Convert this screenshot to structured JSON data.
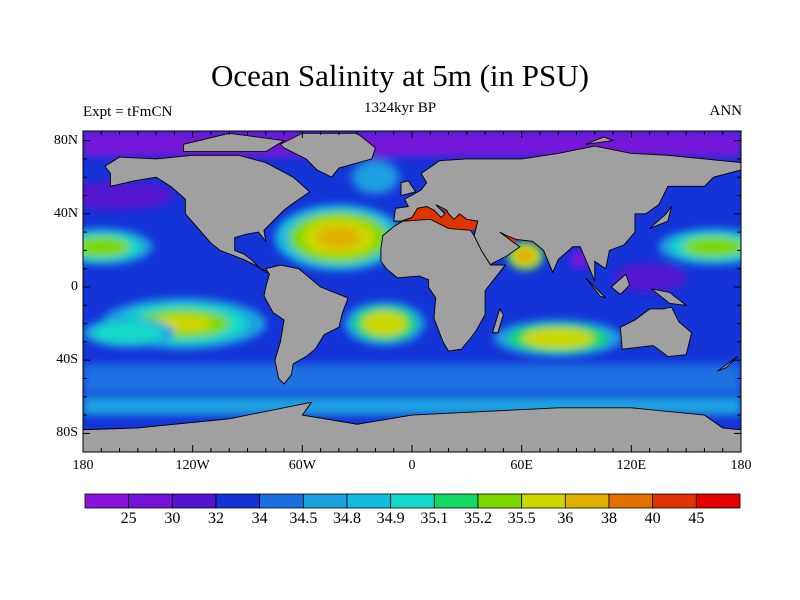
{
  "title": "Ocean Salinity at 5m (in PSU)",
  "subtitle_left": "Expt = tFmCN",
  "subtitle_center": "1324kyr BP",
  "subtitle_right": "ANN",
  "y_ticks": [
    {
      "label": "80N",
      "lat": 80
    },
    {
      "label": "40N",
      "lat": 40
    },
    {
      "label": "0",
      "lat": 0
    },
    {
      "label": "40S",
      "lat": -40
    },
    {
      "label": "80S",
      "lat": -80
    }
  ],
  "x_ticks": [
    {
      "label": "180",
      "lon": -180
    },
    {
      "label": "120W",
      "lon": -120
    },
    {
      "label": "60W",
      "lon": -60
    },
    {
      "label": "0",
      "lon": 0
    },
    {
      "label": "60E",
      "lon": 60
    },
    {
      "label": "120E",
      "lon": 120
    },
    {
      "label": "180",
      "lon": 180
    }
  ],
  "colorbar": {
    "labels": [
      "25",
      "30",
      "32",
      "34",
      "34.5",
      "34.8",
      "34.9",
      "35.1",
      "35.2",
      "35.5",
      "36",
      "38",
      "40",
      "45"
    ],
    "colors": [
      "#8a14dc",
      "#7412d8",
      "#5414d0",
      "#1434d8",
      "#1a70e0",
      "#1ca0e0",
      "#12bce0",
      "#14d8c8",
      "#14d864",
      "#7cd800",
      "#ccd800",
      "#e0b000",
      "#e07000",
      "#e03400",
      "#e40000"
    ]
  },
  "land_color": "#a0a0a0"
}
